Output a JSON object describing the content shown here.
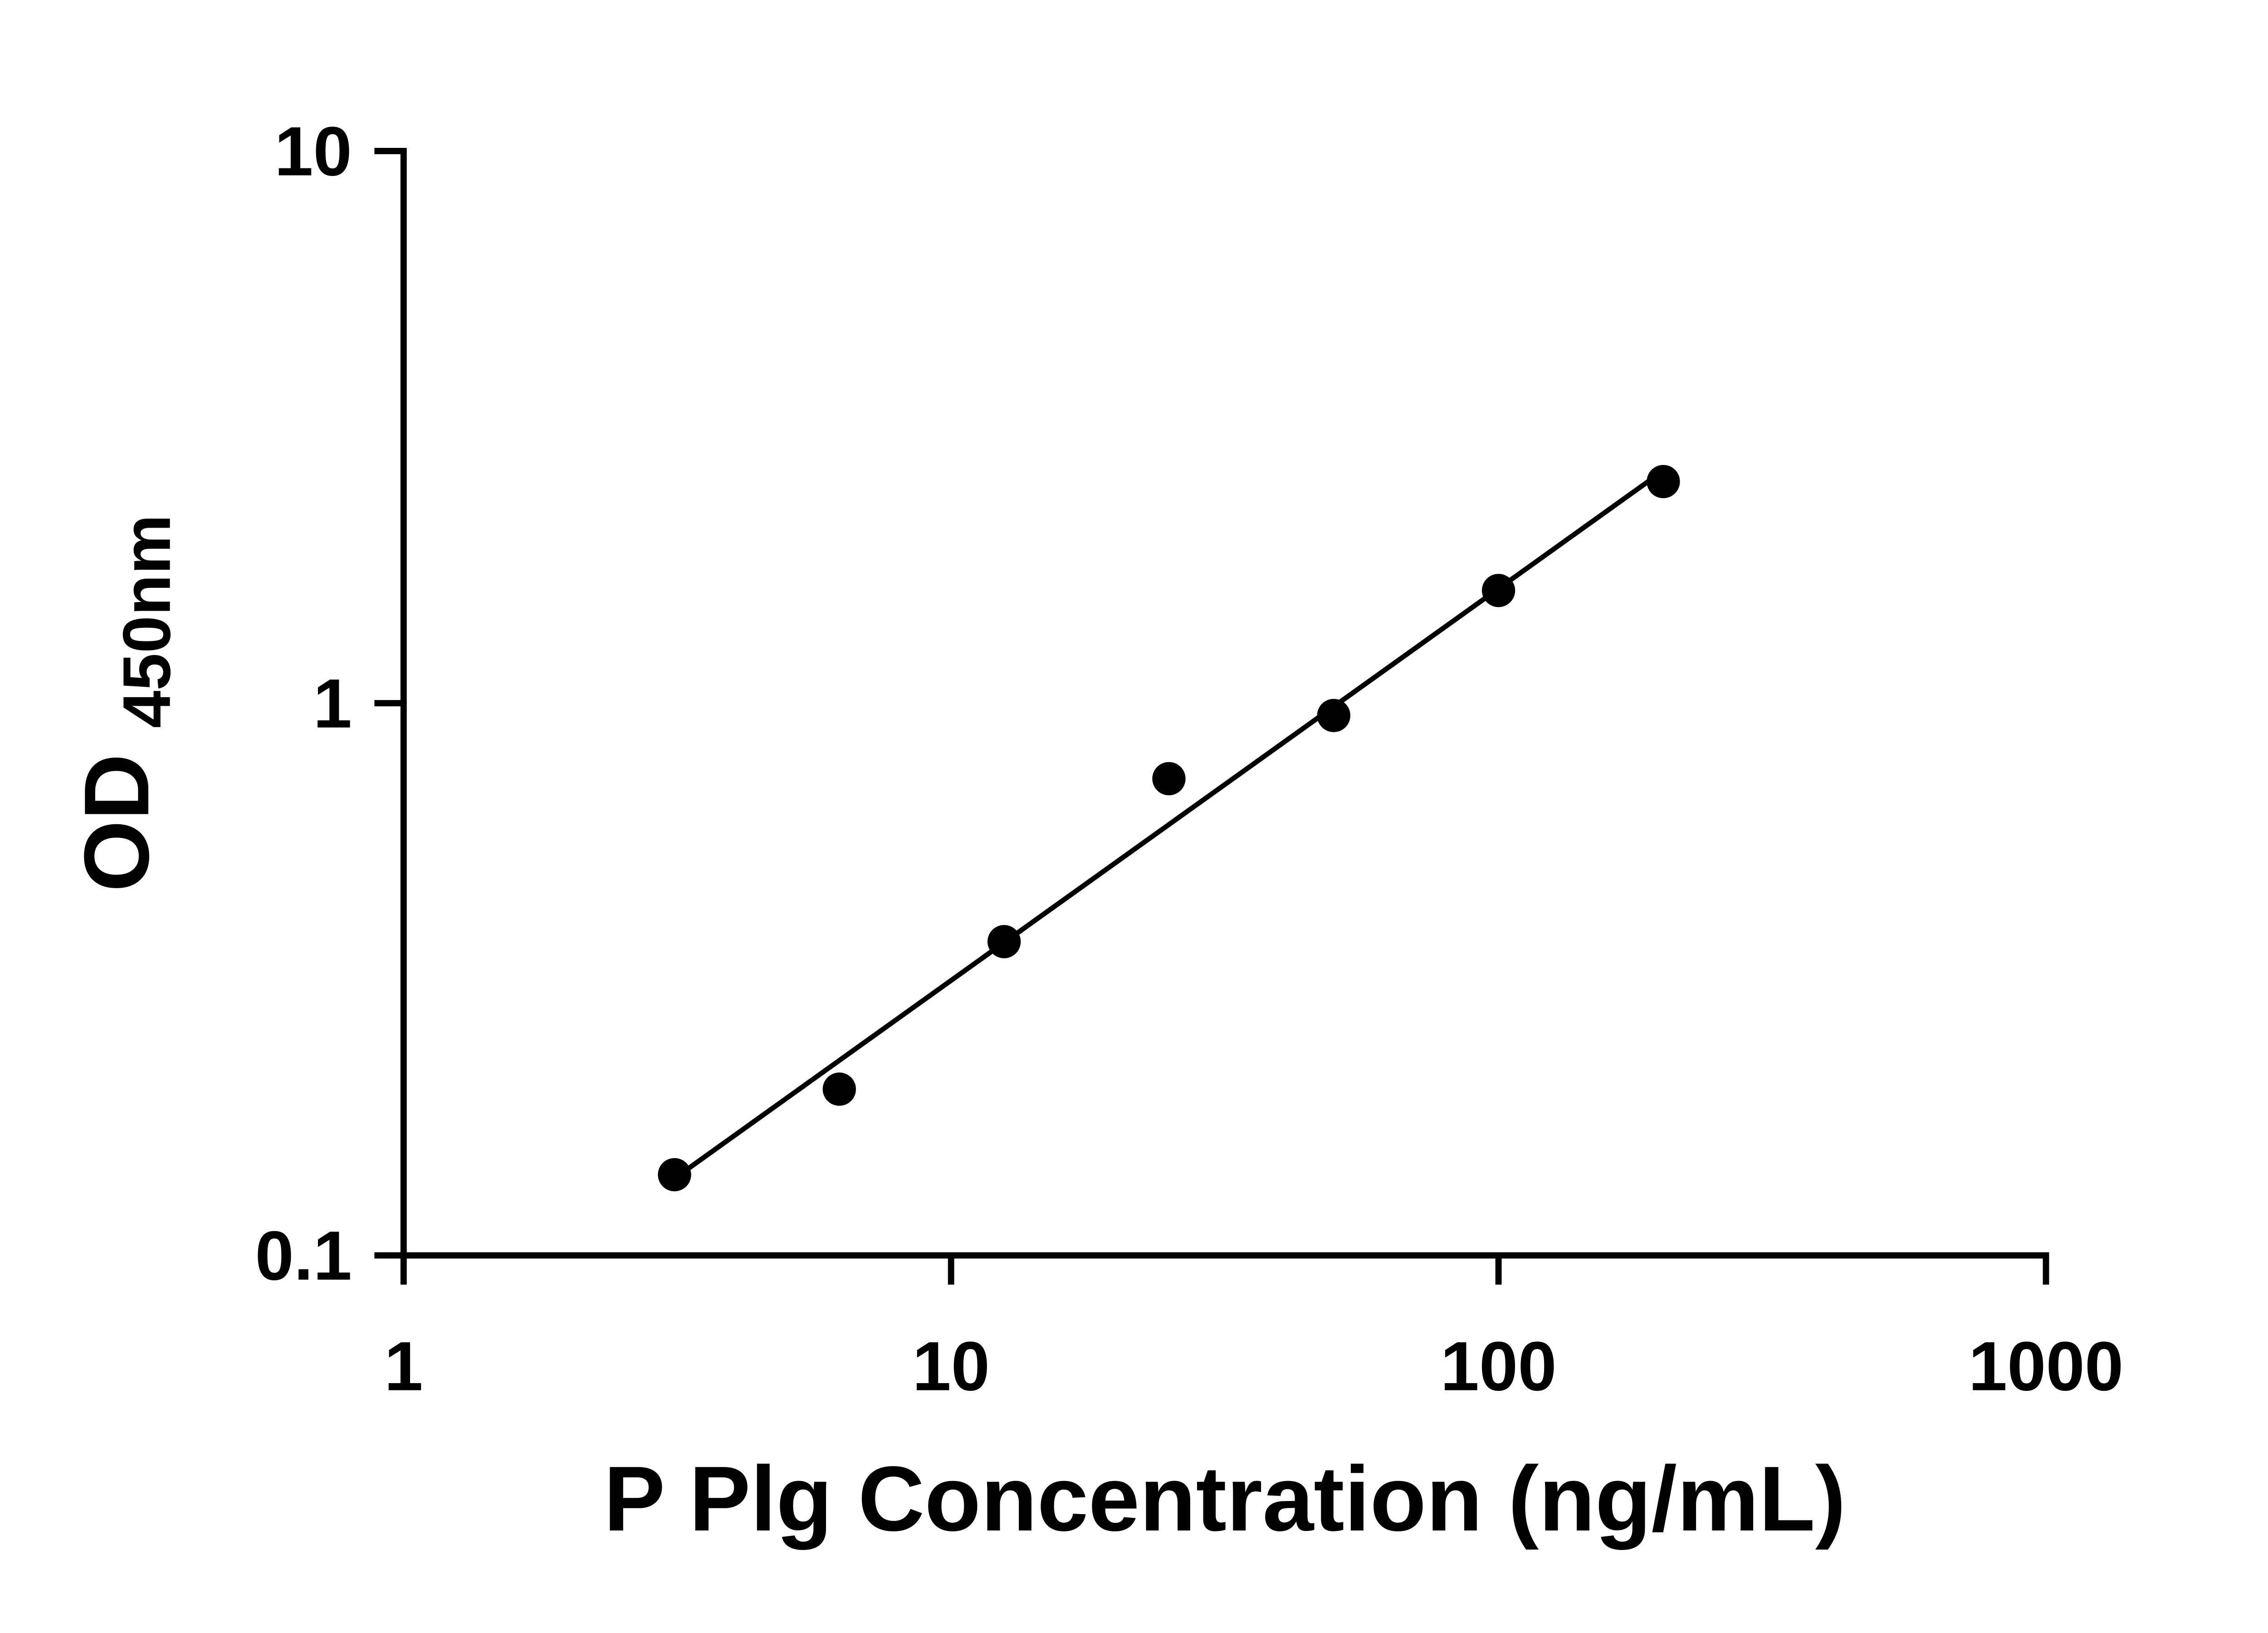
{
  "figure": {
    "background_color": "#ffffff"
  },
  "chart_data": {
    "type": "scatter",
    "title": "",
    "xlabel": "P Plg Concentration (ng/mL)",
    "ylabel": "OD450nm",
    "ylabel_main": "OD",
    "ylabel_sub": "450nm",
    "xscale": "log",
    "yscale": "log",
    "xlim": [
      1,
      1000
    ],
    "ylim": [
      0.1,
      10
    ],
    "x_ticks": [
      1,
      10,
      100,
      1000
    ],
    "x_tick_labels": [
      "1",
      "10",
      "100",
      "1000"
    ],
    "y_ticks": [
      0.1,
      1,
      10
    ],
    "y_tick_labels": [
      "0.1",
      "1",
      "10"
    ],
    "points": [
      {
        "x": 3.125,
        "y": 0.14
      },
      {
        "x": 6.25,
        "y": 0.2
      },
      {
        "x": 12.5,
        "y": 0.37
      },
      {
        "x": 25,
        "y": 0.73
      },
      {
        "x": 50,
        "y": 0.95
      },
      {
        "x": 100,
        "y": 1.6
      },
      {
        "x": 200,
        "y": 2.52
      }
    ],
    "trendline": {
      "show": true,
      "fit": "linear-in-loglog",
      "from_x": 3.125,
      "to_x": 200
    },
    "marker_color": "#000000",
    "line_color": "#000000",
    "axis_color": "#000000",
    "grid": false,
    "legend_position": "none"
  }
}
